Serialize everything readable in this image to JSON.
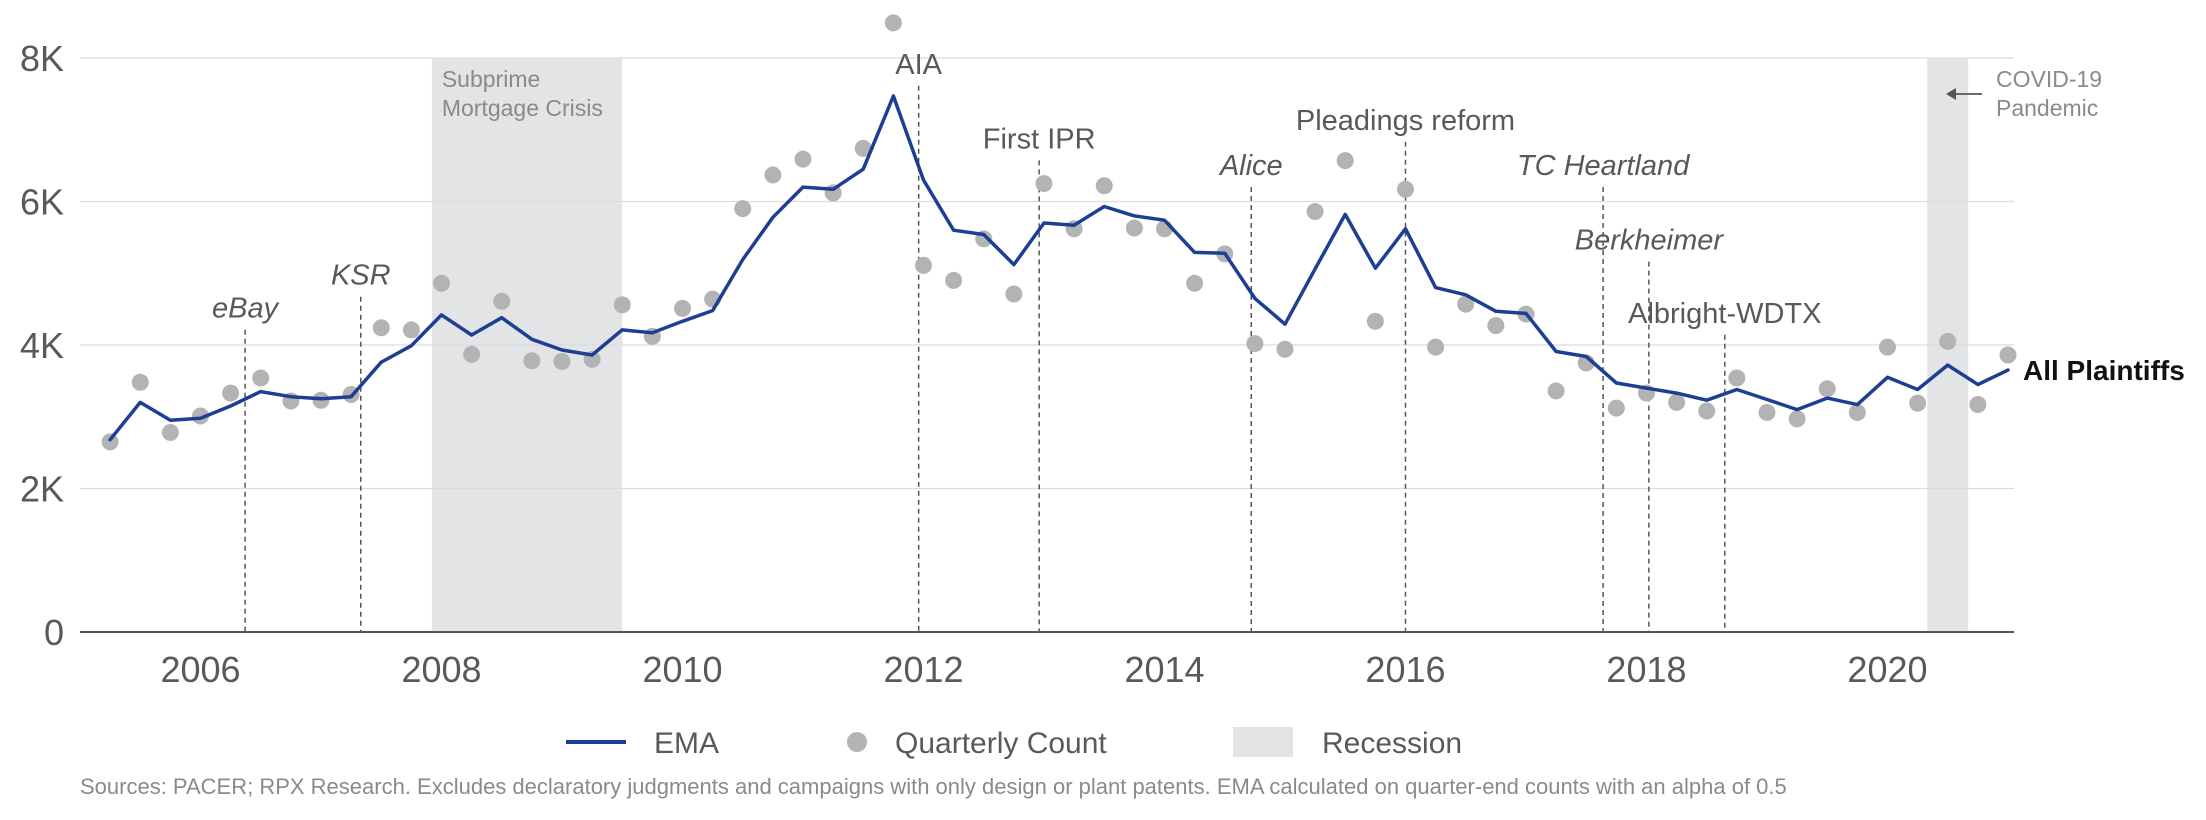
{
  "chart_data": {
    "type": "line",
    "title": "",
    "xlabel": "",
    "ylabel": "",
    "xlim": [
      2005.0,
      2021.05
    ],
    "ylim": [
      0,
      8000
    ],
    "x_ticks": [
      {
        "value": 2006,
        "label": "2006"
      },
      {
        "value": 2008,
        "label": "2008"
      },
      {
        "value": 2010,
        "label": "2010"
      },
      {
        "value": 2012,
        "label": "2012"
      },
      {
        "value": 2014,
        "label": "2014"
      },
      {
        "value": 2016,
        "label": "2016"
      },
      {
        "value": 2018,
        "label": "2018"
      },
      {
        "value": 2020,
        "label": "2020"
      }
    ],
    "y_ticks": [
      {
        "value": 0,
        "label": "0"
      },
      {
        "value": 2000,
        "label": "2K"
      },
      {
        "value": 4000,
        "label": "4K"
      },
      {
        "value": 6000,
        "label": "6K"
      },
      {
        "value": 8000,
        "label": "8K"
      }
    ],
    "grid": "horizontal",
    "colors": {
      "ema": "#1c3f94",
      "quarterly": "#b3b3b6",
      "recession": "#e3e4e6",
      "event_line": "#555555",
      "text": "#595959"
    },
    "series": [
      {
        "name": "EMA",
        "kind": "line",
        "x": [
          2005.25,
          2005.5,
          2005.75,
          2006.0,
          2006.25,
          2006.5,
          2006.75,
          2007.0,
          2007.25,
          2007.5,
          2007.75,
          2008.0,
          2008.25,
          2008.5,
          2008.75,
          2009.0,
          2009.25,
          2009.5,
          2009.75,
          2010.0,
          2010.25,
          2010.5,
          2010.75,
          2011.0,
          2011.25,
          2011.5,
          2011.75,
          2012.0,
          2012.25,
          2012.5,
          2012.75,
          2013.0,
          2013.25,
          2013.5,
          2013.75,
          2014.0,
          2014.25,
          2014.5,
          2014.75,
          2015.0,
          2015.25,
          2015.5,
          2015.75,
          2016.0,
          2016.25,
          2016.5,
          2016.75,
          2017.0,
          2017.25,
          2017.5,
          2017.75,
          2018.0,
          2018.25,
          2018.5,
          2018.75,
          2019.0,
          2019.25,
          2019.5,
          2019.75,
          2020.0,
          2020.25,
          2020.5,
          2020.75,
          2021.0
        ],
        "values": [
          2680,
          3200,
          2950,
          2980,
          3150,
          3350,
          3280,
          3250,
          3280,
          3760,
          3990,
          4420,
          4140,
          4380,
          4080,
          3930,
          3860,
          4210,
          4170,
          4330,
          4480,
          5190,
          5780,
          6200,
          6170,
          6450,
          7470,
          6300,
          5600,
          5540,
          5120,
          5700,
          5670,
          5930,
          5800,
          5740,
          5290,
          5280,
          4650,
          4290,
          5060,
          5820,
          5070,
          5620,
          4800,
          4700,
          4470,
          4440,
          3910,
          3840,
          3470,
          3400,
          3330,
          3230,
          3380,
          3240,
          3100,
          3260,
          3170,
          3550,
          3380,
          3720,
          3450,
          3650
        ]
      },
      {
        "name": "Quarterly Count",
        "kind": "scatter",
        "x": [
          2005.25,
          2005.5,
          2005.75,
          2006.0,
          2006.25,
          2006.5,
          2006.75,
          2007.0,
          2007.25,
          2007.5,
          2007.75,
          2008.0,
          2008.25,
          2008.5,
          2008.75,
          2009.0,
          2009.25,
          2009.5,
          2009.75,
          2010.0,
          2010.25,
          2010.5,
          2010.75,
          2011.0,
          2011.25,
          2011.5,
          2011.75,
          2012.0,
          2012.25,
          2012.5,
          2012.75,
          2013.0,
          2013.25,
          2013.5,
          2013.75,
          2014.0,
          2014.25,
          2014.5,
          2014.75,
          2015.0,
          2015.25,
          2015.5,
          2015.75,
          2016.0,
          2016.25,
          2016.5,
          2016.75,
          2017.0,
          2017.25,
          2017.5,
          2017.75,
          2018.0,
          2018.25,
          2018.5,
          2018.75,
          2019.0,
          2019.25,
          2019.5,
          2019.75,
          2020.0,
          2020.25,
          2020.5,
          2020.75,
          2021.0
        ],
        "values": [
          2650,
          3480,
          2780,
          3010,
          3330,
          3540,
          3220,
          3230,
          3310,
          4240,
          4210,
          4860,
          3870,
          4610,
          3780,
          3770,
          3800,
          4560,
          4120,
          4510,
          4640,
          5900,
          6370,
          6590,
          6120,
          6740,
          8490,
          5110,
          4900,
          5480,
          4710,
          6250,
          5620,
          6220,
          5630,
          5620,
          4860,
          5270,
          4020,
          3940,
          5860,
          6570,
          4330,
          6170,
          3970,
          4570,
          4270,
          4430,
          3360,
          3750,
          3120,
          3330,
          3200,
          3080,
          3540,
          3060,
          2970,
          3390,
          3060,
          3970,
          3190,
          4050,
          3170,
          3860
        ]
      }
    ],
    "recessions": [
      {
        "start": 2007.92,
        "end": 2009.5,
        "label_lines": [
          "Subprime",
          "Mortgage Crisis"
        ]
      },
      {
        "start": 2020.33,
        "end": 2020.67,
        "label_lines": [
          "COVID-19",
          "Pandemic"
        ]
      }
    ],
    "events": [
      {
        "label": "eBay",
        "x": 2006.37,
        "label_value": 4380,
        "italic": true
      },
      {
        "label": "KSR",
        "x": 2007.33,
        "label_value": 4840,
        "italic": true
      },
      {
        "label": "AIA",
        "x": 2011.96,
        "label_value": 7780,
        "italic": false
      },
      {
        "label": "First IPR",
        "x": 2012.96,
        "label_value": 6740,
        "italic": false
      },
      {
        "label": "Alice",
        "x": 2014.72,
        "label_value": 6370,
        "italic": true
      },
      {
        "label": "Pleadings reform",
        "x": 2016.0,
        "label_value": 7000,
        "italic": false
      },
      {
        "label": "TC Heartland",
        "x": 2017.64,
        "label_value": 6370,
        "italic": true
      },
      {
        "label": "Berkheimer",
        "x": 2018.02,
        "label_value": 5330,
        "italic": true
      },
      {
        "label": "Albright-WDTX",
        "x": 2018.65,
        "label_value": 4310,
        "italic": false
      }
    ],
    "series_end_label": "All Plaintiffs",
    "legend": {
      "position": "bottom",
      "items": [
        {
          "label": "EMA",
          "symbol": "line"
        },
        {
          "label": "Quarterly Count",
          "symbol": "dot"
        },
        {
          "label": "Recession",
          "symbol": "box"
        }
      ]
    }
  },
  "source_note": "Sources: PACER; RPX Research. Excludes declaratory judgments and campaigns with only design or plant patents. EMA calculated on quarter-end counts with an alpha of 0.5"
}
